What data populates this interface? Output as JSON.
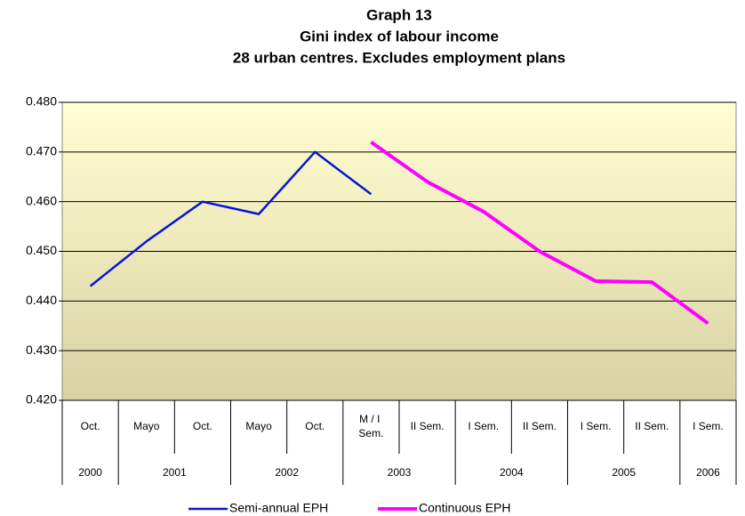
{
  "chart_data": {
    "type": "line",
    "title": [
      "Graph 13",
      "Gini index of labour income",
      "28 urban centres. Excludes employment plans"
    ],
    "categories": [
      "Oct.",
      "Mayo",
      "Oct.",
      "Mayo",
      "Oct.",
      "M / I Sem.",
      "II Sem.",
      "I Sem.",
      "II Sem.",
      "I Sem.",
      "II Sem.",
      "I Sem."
    ],
    "groups": [
      {
        "label": "2000",
        "count": 1
      },
      {
        "label": "2001",
        "count": 2
      },
      {
        "label": "2002",
        "count": 2
      },
      {
        "label": "2003",
        "count": 2
      },
      {
        "label": "2004",
        "count": 2
      },
      {
        "label": "2005",
        "count": 2
      },
      {
        "label": "2006",
        "count": 1
      }
    ],
    "series": [
      {
        "name": "Semi-annual EPH",
        "color": "#0a14d8",
        "values": [
          0.443,
          0.452,
          0.46,
          0.4575,
          0.47,
          0.4615,
          null,
          null,
          null,
          null,
          null,
          null
        ]
      },
      {
        "name": "Continuous EPH",
        "color": "#ff00ff",
        "values": [
          null,
          null,
          null,
          null,
          null,
          0.472,
          0.464,
          0.458,
          0.45,
          0.444,
          0.4438,
          0.4355
        ]
      }
    ],
    "ylim": [
      0.42,
      0.48
    ],
    "yticks": [
      {
        "value": 0.42,
        "label": "0.420"
      },
      {
        "value": 0.43,
        "label": "0.430"
      },
      {
        "value": 0.44,
        "label": "0.440"
      },
      {
        "value": 0.45,
        "label": "0.450"
      },
      {
        "value": 0.46,
        "label": "0.460"
      },
      {
        "value": 0.47,
        "label": "0.470"
      },
      {
        "value": 0.48,
        "label": "0.480"
      }
    ],
    "grid": true,
    "legend": "bottom"
  }
}
